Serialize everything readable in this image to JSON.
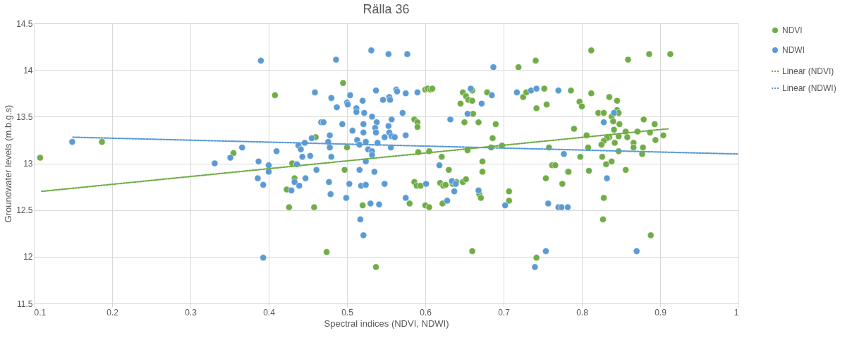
{
  "chart_data": {
    "type": "scatter",
    "title": "Rälla 36",
    "xlabel": "Spectral indices (NDVI, NDWI)",
    "ylabel": "Groundwater levels (m.b.g.s)",
    "xlim": [
      0.1,
      1
    ],
    "xticks": [
      0.1,
      0.2,
      0.3,
      0.4,
      0.5,
      0.6,
      0.7,
      0.8,
      0.9,
      1
    ],
    "ylim": [
      11.5,
      14.5
    ],
    "yticks": [
      11.5,
      12,
      12.5,
      13,
      13.5,
      14,
      14.5
    ],
    "grid": true,
    "legend": "right",
    "series": [
      {
        "name": "NDVI",
        "color": "#70ad47",
        "marker": "circle",
        "x": [
          0.108,
          0.187,
          0.355,
          0.408,
          0.423,
          0.426,
          0.43,
          0.433,
          0.458,
          0.46,
          0.474,
          0.495,
          0.497,
          0.5,
          0.52,
          0.537,
          0.58,
          0.586,
          0.589,
          0.594,
          0.586,
          0.59,
          0.59,
          0.591,
          0.6,
          0.603,
          0.607,
          0.609,
          0.605,
          0.6,
          0.605,
          0.621,
          0.63,
          0.619,
          0.623,
          0.626,
          0.622,
          0.635,
          0.64,
          0.648,
          0.652,
          0.645,
          0.648,
          0.652,
          0.655,
          0.66,
          0.66,
          0.661,
          0.65,
          0.668,
          0.654,
          0.66,
          0.673,
          0.673,
          0.669,
          0.671,
          0.679,
          0.686,
          0.684,
          0.69,
          0.698,
          0.707,
          0.707,
          0.719,
          0.725,
          0.729,
          0.741,
          0.742,
          0.752,
          0.755,
          0.758,
          0.762,
          0.766,
          0.754,
          0.775,
          0.782,
          0.742,
          0.786,
          0.79,
          0.812,
          0.859,
          0.886,
          0.913,
          0.812,
          0.797,
          0.8,
          0.835,
          0.845,
          0.821,
          0.828,
          0.845,
          0.847,
          0.838,
          0.84,
          0.848,
          0.879,
          0.893,
          0.841,
          0.856,
          0.806,
          0.835,
          0.832,
          0.828,
          0.825,
          0.847,
          0.842,
          0.858,
          0.871,
          0.887,
          0.904,
          0.866,
          0.866,
          0.894,
          0.878,
          0.877,
          0.808,
          0.847,
          0.798,
          0.826,
          0.831,
          0.838,
          0.783,
          0.809,
          0.856,
          0.828,
          0.827,
          0.888
        ],
        "values": [
          13.06,
          13.23,
          13.11,
          13.73,
          12.72,
          12.53,
          13.0,
          12.84,
          12.53,
          13.28,
          12.05,
          13.86,
          12.93,
          13.17,
          12.55,
          11.89,
          12.57,
          12.8,
          12.76,
          12.76,
          13.47,
          13.44,
          13.39,
          13.12,
          13.79,
          13.8,
          13.79,
          13.8,
          13.13,
          12.55,
          12.53,
          13.07,
          12.93,
          12.79,
          12.76,
          12.77,
          12.57,
          12.78,
          12.8,
          12.8,
          12.83,
          13.64,
          13.76,
          13.72,
          13.68,
          13.78,
          13.67,
          13.53,
          13.44,
          13.44,
          13.14,
          12.06,
          13.02,
          12.91,
          12.67,
          12.63,
          13.76,
          13.27,
          13.17,
          13.42,
          13.19,
          12.7,
          12.6,
          14.03,
          13.71,
          13.76,
          14.1,
          13.59,
          13.8,
          13.63,
          13.17,
          12.98,
          12.98,
          12.84,
          12.78,
          12.91,
          11.99,
          13.78,
          13.37,
          14.21,
          14.11,
          14.17,
          14.17,
          13.75,
          13.66,
          13.61,
          13.71,
          13.67,
          13.54,
          13.54,
          13.57,
          13.54,
          13.5,
          13.45,
          13.42,
          13.47,
          13.42,
          13.36,
          13.34,
          13.3,
          13.28,
          13.27,
          13.24,
          13.2,
          13.29,
          13.22,
          13.28,
          13.34,
          13.33,
          13.3,
          13.22,
          13.17,
          13.25,
          13.17,
          13.1,
          13.17,
          13.13,
          13.07,
          13.07,
          12.99,
          13.02,
          12.91,
          12.92,
          12.93,
          12.63,
          12.4,
          12.23
        ]
      },
      {
        "name": "NDWI",
        "color": "#5b9bd5",
        "marker": "circle",
        "x": [
          0.149,
          0.39,
          0.366,
          0.351,
          0.331,
          0.387,
          0.4,
          0.4,
          0.386,
          0.393,
          0.393,
          0.41,
          0.438,
          0.441,
          0.446,
          0.455,
          0.436,
          0.443,
          0.453,
          0.461,
          0.447,
          0.433,
          0.439,
          0.429,
          0.459,
          0.467,
          0.47,
          0.478,
          0.476,
          0.478,
          0.48,
          0.477,
          0.479,
          0.48,
          0.487,
          0.486,
          0.494,
          0.5,
          0.501,
          0.504,
          0.507,
          0.499,
          0.503,
          0.512,
          0.512,
          0.52,
          0.522,
          0.513,
          0.516,
          0.521,
          0.521,
          0.524,
          0.516,
          0.518,
          0.524,
          0.517,
          0.521,
          0.532,
          0.531,
          0.537,
          0.546,
          0.538,
          0.536,
          0.537,
          0.524,
          0.527,
          0.532,
          0.539,
          0.532,
          0.535,
          0.53,
          0.541,
          0.553,
          0.577,
          0.554,
          0.555,
          0.563,
          0.564,
          0.575,
          0.557,
          0.553,
          0.554,
          0.557,
          0.561,
          0.548,
          0.556,
          0.571,
          0.575,
          0.548,
          0.575,
          0.59,
          0.601,
          0.618,
          0.632,
          0.658,
          0.654,
          0.672,
          0.685,
          0.687,
          0.634,
          0.639,
          0.637,
          0.628,
          0.668,
          0.702,
          0.717,
          0.735,
          0.742,
          0.77,
          0.777,
          0.757,
          0.77,
          0.774,
          0.782,
          0.754,
          0.74,
          0.841,
          0.828,
          0.832,
          0.87
        ],
        "values": [
          13.23,
          14.1,
          13.17,
          13.06,
          13.0,
          13.02,
          12.98,
          12.91,
          12.84,
          12.77,
          11.99,
          13.13,
          13.19,
          13.15,
          13.22,
          13.27,
          12.99,
          13.07,
          13.08,
          12.93,
          12.84,
          12.8,
          12.76,
          12.71,
          13.76,
          13.44,
          13.44,
          13.3,
          13.23,
          13.17,
          13.07,
          12.8,
          12.67,
          13.7,
          13.6,
          14.11,
          13.42,
          13.65,
          13.63,
          13.73,
          13.35,
          12.63,
          12.78,
          13.59,
          13.55,
          13.67,
          13.54,
          13.25,
          13.2,
          13.42,
          13.33,
          13.02,
          12.93,
          12.76,
          12.77,
          12.4,
          12.23,
          13.5,
          14.21,
          13.78,
          13.68,
          13.44,
          13.38,
          13.33,
          13.23,
          13.15,
          13.13,
          13.22,
          13.09,
          12.91,
          12.57,
          12.56,
          14.17,
          14.17,
          13.71,
          13.68,
          13.79,
          13.77,
          13.75,
          13.47,
          13.4,
          13.33,
          13.29,
          13.28,
          13.28,
          13.17,
          13.54,
          13.3,
          12.78,
          12.63,
          13.76,
          12.78,
          12.98,
          13.47,
          13.8,
          13.53,
          13.64,
          13.73,
          14.03,
          12.81,
          12.78,
          12.7,
          12.6,
          12.71,
          12.55,
          13.76,
          13.78,
          13.8,
          13.78,
          13.1,
          12.57,
          12.53,
          12.53,
          12.53,
          12.06,
          11.89,
          13.54,
          13.44,
          12.84,
          12.06
        ]
      },
      {
        "name": "Linear (NDVI)",
        "type": "line",
        "line_style": "dotted",
        "marker": "none",
        "color": "#70ad47",
        "x": [
          0.11,
          0.91
        ],
        "values": [
          12.7,
          13.37
        ]
      },
      {
        "name": "Linear (NDWI)",
        "type": "line",
        "line_style": "dotted",
        "marker": "none",
        "color": "#5b9bd5",
        "x": [
          0.15,
          1
        ],
        "values": [
          13.28,
          13.1
        ]
      }
    ]
  }
}
